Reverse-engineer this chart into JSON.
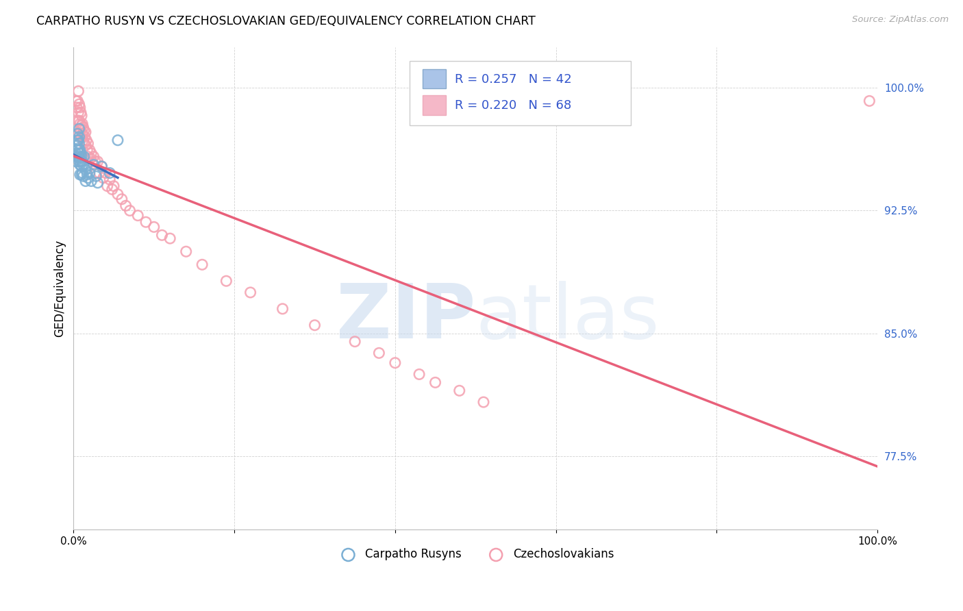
{
  "title": "CARPATHO RUSYN VS CZECHOSLOVAKIAN GED/EQUIVALENCY CORRELATION CHART",
  "source": "Source: ZipAtlas.com",
  "ylabel": "GED/Equivalency",
  "y_ticks": [
    0.775,
    0.85,
    0.925,
    1.0
  ],
  "y_tick_labels": [
    "77.5%",
    "85.0%",
    "92.5%",
    "100.0%"
  ],
  "x_range": [
    0.0,
    1.0
  ],
  "y_range": [
    0.73,
    1.025
  ],
  "blue_color": "#7BAFD4",
  "pink_color": "#F4A0B0",
  "blue_line_color": "#3B6FBF",
  "pink_line_color": "#E8607A",
  "carpatho_rusyns_x": [
    0.003,
    0.003,
    0.004,
    0.004,
    0.005,
    0.005,
    0.005,
    0.006,
    0.006,
    0.006,
    0.007,
    0.007,
    0.007,
    0.007,
    0.007,
    0.008,
    0.008,
    0.008,
    0.008,
    0.009,
    0.009,
    0.01,
    0.01,
    0.01,
    0.011,
    0.011,
    0.012,
    0.012,
    0.013,
    0.015,
    0.015,
    0.016,
    0.017,
    0.018,
    0.02,
    0.022,
    0.025,
    0.028,
    0.03,
    0.035,
    0.045,
    0.055
  ],
  "carpatho_rusyns_y": [
    0.96,
    0.955,
    0.965,
    0.958,
    0.972,
    0.968,
    0.962,
    0.968,
    0.963,
    0.958,
    0.975,
    0.97,
    0.966,
    0.96,
    0.955,
    0.962,
    0.957,
    0.953,
    0.947,
    0.96,
    0.955,
    0.958,
    0.952,
    0.947,
    0.955,
    0.948,
    0.953,
    0.946,
    0.958,
    0.95,
    0.943,
    0.952,
    0.947,
    0.945,
    0.948,
    0.943,
    0.953,
    0.946,
    0.942,
    0.952,
    0.948,
    0.968
  ],
  "czechoslovakians_x": [
    0.003,
    0.004,
    0.005,
    0.005,
    0.006,
    0.006,
    0.007,
    0.007,
    0.007,
    0.008,
    0.008,
    0.009,
    0.009,
    0.01,
    0.01,
    0.01,
    0.011,
    0.011,
    0.012,
    0.012,
    0.013,
    0.013,
    0.014,
    0.015,
    0.015,
    0.016,
    0.017,
    0.018,
    0.018,
    0.02,
    0.021,
    0.022,
    0.023,
    0.025,
    0.027,
    0.028,
    0.03,
    0.032,
    0.035,
    0.037,
    0.04,
    0.042,
    0.045,
    0.048,
    0.05,
    0.055,
    0.06,
    0.065,
    0.07,
    0.08,
    0.09,
    0.1,
    0.11,
    0.12,
    0.14,
    0.16,
    0.19,
    0.22,
    0.26,
    0.3,
    0.35,
    0.38,
    0.4,
    0.43,
    0.45,
    0.48,
    0.51,
    0.99
  ],
  "czechoslovakians_y": [
    0.992,
    0.988,
    0.992,
    0.98,
    0.985,
    0.998,
    0.99,
    0.98,
    0.972,
    0.988,
    0.978,
    0.985,
    0.975,
    0.983,
    0.977,
    0.97,
    0.978,
    0.972,
    0.976,
    0.968,
    0.974,
    0.966,
    0.97,
    0.973,
    0.965,
    0.968,
    0.962,
    0.966,
    0.958,
    0.962,
    0.957,
    0.96,
    0.955,
    0.958,
    0.955,
    0.948,
    0.955,
    0.948,
    0.952,
    0.945,
    0.948,
    0.94,
    0.944,
    0.938,
    0.94,
    0.935,
    0.932,
    0.928,
    0.925,
    0.922,
    0.918,
    0.915,
    0.91,
    0.908,
    0.9,
    0.892,
    0.882,
    0.875,
    0.865,
    0.855,
    0.845,
    0.838,
    0.832,
    0.825,
    0.82,
    0.815,
    0.808,
    0.992
  ]
}
